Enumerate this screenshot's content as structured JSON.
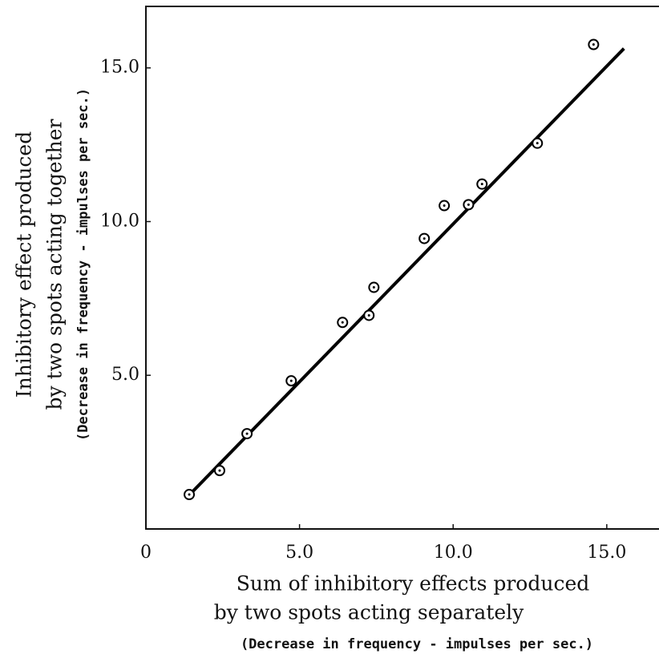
{
  "chart_data": {
    "type": "scatter",
    "xlabel": [
      "Sum of inhibitory effects produced",
      "by two spots acting separately",
      "(Decrease in frequency - impulses per sec.)"
    ],
    "ylabel": [
      "Inhibitory effect produced",
      "by two spots acting together",
      "(Decrease in frequency - impulses per sec.)"
    ],
    "x": [
      1.41,
      2.4,
      3.29,
      4.73,
      6.4,
      7.26,
      7.42,
      9.06,
      9.71,
      10.5,
      10.94,
      12.74,
      14.57
    ],
    "values": [
      1.12,
      1.9,
      3.1,
      4.82,
      6.72,
      6.95,
      7.86,
      9.45,
      10.52,
      10.55,
      11.22,
      12.55,
      15.76
    ],
    "fit_line": {
      "x": [
        1.3,
        15.56
      ],
      "values": [
        0.99,
        15.63
      ]
    },
    "color": "#000000",
    "xlim": [
      0,
      16.7
    ],
    "ylim": [
      0,
      17.0
    ],
    "xticks": [
      0,
      {
        "value": 5,
        "label": "5.0"
      },
      {
        "value": 10,
        "label": "10.0"
      },
      {
        "value": 15,
        "label": "15.0"
      }
    ],
    "yticks": [
      {
        "value": 5,
        "label": "5.0"
      },
      {
        "value": 10,
        "label": "10.0"
      },
      {
        "value": 15,
        "label": "15.0"
      }
    ]
  }
}
